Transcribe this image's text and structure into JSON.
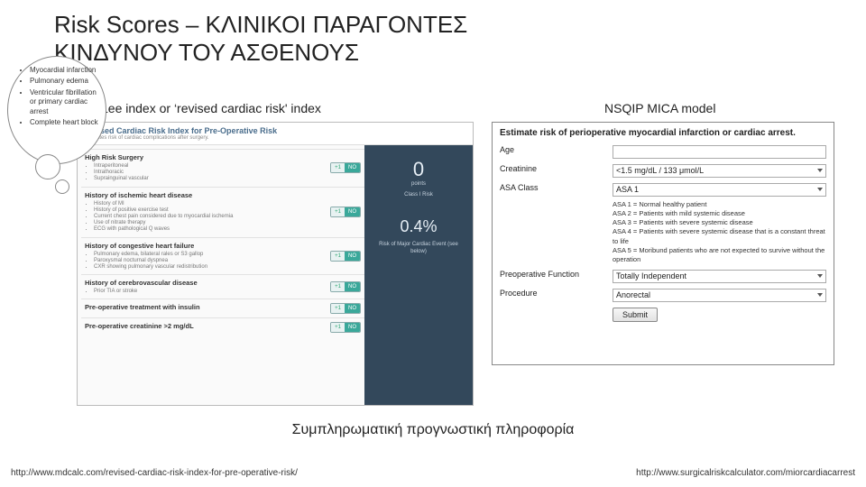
{
  "title": {
    "line1": "Risk Scores – ΚΛΙΝΙΚΟΙ ΠΑΡΑΓΟΝΤΕΣ",
    "line2": "ΚΙΝΔΥΝΟΥ ΤΟΥ ΑΣΘΕΝΟΥΣ"
  },
  "cloud_items": [
    "Myocardial infarction",
    "Pulmonary edema",
    "Ventricular fibrillation or primary cardiac arrest",
    "Complete heart block"
  ],
  "labels": {
    "lee": "Lee index or ‘revised cardiac risk' index",
    "nsqip": "NSQIP MICA model"
  },
  "lee": {
    "header": "Revised Cardiac Risk Index for Pre-Operative Risk",
    "sub": "Estimates risk of cardiac complications after surgery.",
    "questions": [
      {
        "title": "High Risk Surgery",
        "subs": [
          "Intraperitoneal",
          "Intrathoracic",
          "Suprainguinal vascular"
        ]
      },
      {
        "title": "History of ischemic heart disease",
        "subs": [
          "History of MI",
          "History of positive exercise test",
          "Current chest pain considered due to myocardial ischemia",
          "Use of nitrate therapy",
          "ECG with pathological Q waves"
        ]
      },
      {
        "title": "History of congestive heart failure",
        "subs": [
          "Pulmonary edema, bilateral rales or S3 gallop",
          "Paroxysmal nocturnal dyspnea",
          "CXR showing pulmonary vascular redistribution"
        ]
      },
      {
        "title": "History of cerebrovascular disease",
        "subs": [
          "Prior TIA or stroke"
        ]
      },
      {
        "title": "Pre-operative treatment with insulin",
        "subs": []
      },
      {
        "title": "Pre-operative creatinine >2 mg/dL",
        "subs": []
      }
    ],
    "result": {
      "points": "0",
      "points_label": "points",
      "class": "Class I Risk",
      "pct": "0.4%",
      "pct_label": "Risk of Major Cardiac Event (see below)"
    }
  },
  "nsqip": {
    "title": "Estimate risk of perioperative myocardial infarction or cardiac arrest.",
    "fields": {
      "age_label": "Age",
      "age_value": "",
      "creat_label": "Creatinine",
      "creat_value": "<1.5 mg/dL / 133 μmol/L",
      "asa_label": "ASA Class",
      "asa_value": "ASA 1",
      "preop_label": "Preoperative Function",
      "preop_value": "Totally Independent",
      "proc_label": "Procedure",
      "proc_value": "Anorectal",
      "submit": "Submit"
    },
    "asa_notes": [
      "ASA 1 = Normal healthy patient",
      "ASA 2 = Patients with mild systemic disease",
      "ASA 3 = Patients with severe systemic disease",
      "ASA 4 = Patients with severe systemic disease that is a constant threat to life",
      "ASA 5 = Moribund patients who are not expected to survive without the operation"
    ]
  },
  "footer": "Συμπληρωματική προγνωστική πληροφορία",
  "urls": {
    "left": "http://www.mdcalc.com/revised-cardiac-risk-index-for-pre-operative-risk/",
    "right": "http://www.surgicalriskcalculator.com/miorcardiacarrest"
  },
  "colors": {
    "result_bg": "#33485b",
    "no_btn": "#3aa89a"
  }
}
